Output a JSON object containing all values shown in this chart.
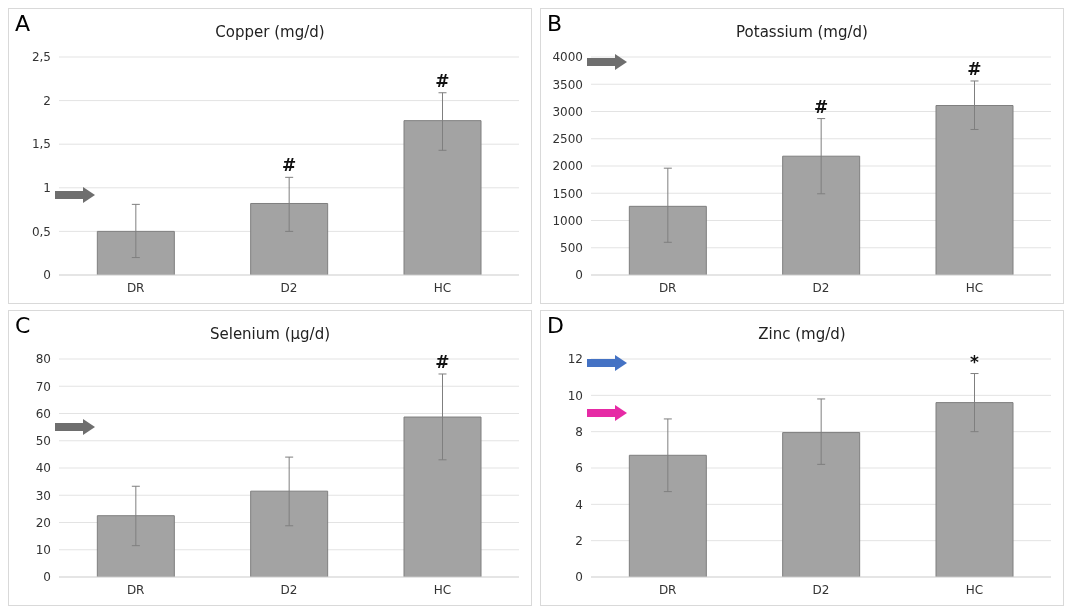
{
  "chart_data": [
    {
      "type": "bar",
      "title": "Copper (mg/d)",
      "categories": [
        "DR",
        "D2",
        "HC"
      ],
      "values": [
        0.5,
        0.82,
        1.77
      ],
      "errors": [
        [
          0.2,
          0.81
        ],
        [
          0.5,
          1.12
        ],
        [
          1.43,
          2.09
        ]
      ],
      "color": "#a3a3a3",
      "ylim": [
        0,
        2.5
      ],
      "yticks": [
        0,
        {
          "value": 0.5,
          "label": "0,5"
        },
        1,
        {
          "value": 1.5,
          "label": "1,5"
        },
        2,
        {
          "value": 2.5,
          "label": "2,5"
        }
      ],
      "grid": "y",
      "annotations": [
        "A",
        {
          "text": "#",
          "x": "D2",
          "y": 1.12
        },
        {
          "text": "#",
          "x": "HC",
          "y": 2.09
        }
      ]
    },
    {
      "type": "bar",
      "title": "Potassium (mg/d)",
      "categories": [
        "DR",
        "D2",
        "HC"
      ],
      "values": [
        1260,
        2180,
        3110
      ],
      "errors": [
        [
          600,
          1960
        ],
        [
          1490,
          2870
        ],
        [
          2670,
          3560
        ]
      ],
      "color": "#a3a3a3",
      "ylim": [
        0,
        4000
      ],
      "yticks": [
        0,
        500,
        1000,
        1500,
        2000,
        2500,
        3000,
        3500,
        4000
      ],
      "grid": "y",
      "annotations": [
        "B",
        {
          "text": "#",
          "x": "D2",
          "y": 2870
        },
        {
          "text": "#",
          "x": "HC",
          "y": 3560
        }
      ]
    },
    {
      "type": "bar",
      "title": "Selenium (µg/d)",
      "categories": [
        "DR",
        "D2",
        "HC"
      ],
      "values": [
        22.5,
        31.5,
        58.7
      ],
      "errors": [
        [
          11.5,
          33.3
        ],
        [
          18.8,
          44
        ],
        [
          43,
          74.5
        ]
      ],
      "color": "#a3a3a3",
      "ylim": [
        0,
        80
      ],
      "yticks": [
        0,
        10,
        20,
        30,
        40,
        50,
        60,
        70,
        80
      ],
      "grid": "y",
      "annotations": [
        "C",
        {
          "text": "#",
          "x": "HC",
          "y": 74.5
        }
      ]
    },
    {
      "type": "bar",
      "title": "Zinc (mg/d)",
      "categories": [
        "DR",
        "D2",
        "HC"
      ],
      "values": [
        6.7,
        7.95,
        9.6
      ],
      "errors": [
        [
          4.7,
          8.7
        ],
        [
          6.2,
          9.8
        ],
        [
          8,
          11.2
        ]
      ],
      "color": "#a3a3a3",
      "ylim": [
        0,
        12
      ],
      "yticks": [
        0,
        2,
        4,
        6,
        8,
        10,
        12
      ],
      "grid": "y",
      "annotations": [
        "D",
        {
          "text": "*",
          "x": "HC",
          "y": 11.2
        }
      ]
    }
  ]
}
